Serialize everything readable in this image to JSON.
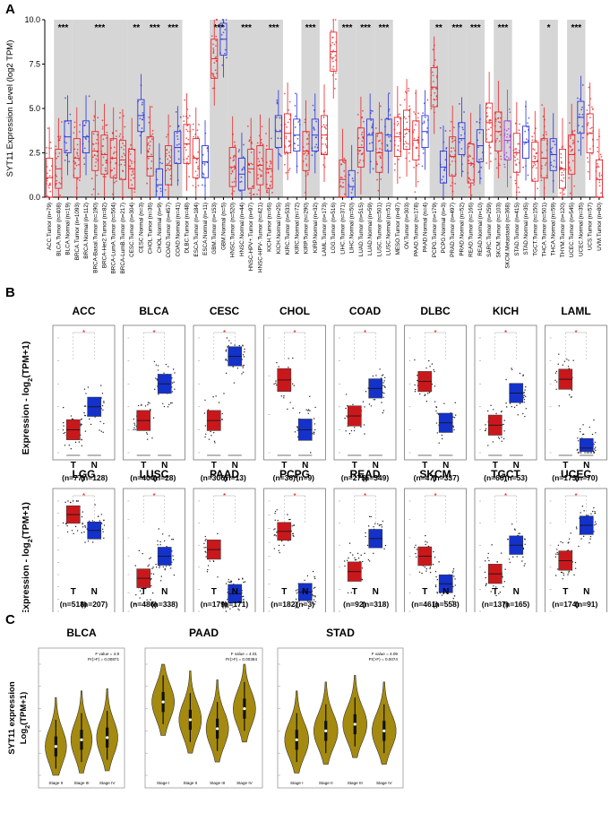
{
  "figure": {
    "panels": [
      {
        "letter": "A"
      },
      {
        "letter": "B"
      },
      {
        "letter": "C"
      }
    ]
  },
  "chart_data": [
    {
      "panel": "A",
      "type": "box",
      "ylabel": "SYT11 Expression Level (log2 TPM)",
      "ylim": [
        0,
        10
      ],
      "yticks": [
        "0.0",
        "2.5",
        "5.0",
        "7.5",
        "10.0"
      ],
      "tumor_color": "#e8262b",
      "normal_color": "#2b36d9",
      "metastasis_color": "#9b3fd6",
      "shade_color": "#d6d6d6",
      "groups": [
        {
          "label": "ACC",
          "shade": false,
          "sig": "",
          "items": [
            {
              "name": "ACC.Tumor (n=79)",
              "kind": "T",
              "median": 1.1
            }
          ]
        },
        {
          "label": "BLCA",
          "shade": true,
          "sig": "***",
          "items": [
            {
              "name": "BLCA.Tumor (n=408)",
              "kind": "T",
              "median": 1.6
            },
            {
              "name": "BLCA.Normal (n=19)",
              "kind": "N",
              "median": 3.4
            }
          ]
        },
        {
          "label": "BRCA",
          "shade": true,
          "sig": "***",
          "items": [
            {
              "name": "BRCA.Tumor (n=1093)",
              "kind": "T",
              "median": 2.2
            },
            {
              "name": "BRCA.Normal (n=112)",
              "kind": "N",
              "median": 3.4
            },
            {
              "name": "BRCA-Basal.Tumor (n=190)",
              "kind": "T",
              "median": 2.6
            },
            {
              "name": "BRCA-Her2.Tumor (n=82)",
              "kind": "T",
              "median": 2.4
            },
            {
              "name": "BRCA-LumA.Tumor (n=564)",
              "kind": "T",
              "median": 2.2
            },
            {
              "name": "BRCA-LumB.Tumor (n=217)",
              "kind": "T",
              "median": 2.1
            }
          ]
        },
        {
          "label": "CESC",
          "shade": true,
          "sig": "**",
          "items": [
            {
              "name": "CESC.Tumor (n=304)",
              "kind": "T",
              "median": 1.6
            },
            {
              "name": "CESC.Normal (n=3)",
              "kind": "N",
              "median": 4.6
            }
          ]
        },
        {
          "label": "CHOL",
          "shade": true,
          "sig": "***",
          "items": [
            {
              "name": "CHOL.Tumor (n=36)",
              "kind": "T",
              "median": 2.3
            },
            {
              "name": "CHOL.Normal (n=9)",
              "kind": "N",
              "median": 0.7
            }
          ]
        },
        {
          "label": "COAD",
          "shade": true,
          "sig": "***",
          "items": [
            {
              "name": "COAD.Tumor (n=457)",
              "kind": "T",
              "median": 1.8
            },
            {
              "name": "COAD.Normal (n=41)",
              "kind": "N",
              "median": 2.8
            }
          ]
        },
        {
          "label": "DLBC",
          "shade": false,
          "sig": "",
          "items": [
            {
              "name": "DLBC.Tumor (n=48)",
              "kind": "T",
              "median": 3.0
            }
          ]
        },
        {
          "label": "ESCA",
          "shade": false,
          "sig": "",
          "items": [
            {
              "name": "ESCA.Tumor (n=184)",
              "kind": "T",
              "median": 2.2
            },
            {
              "name": "ESCA.Normal (n=11)",
              "kind": "N",
              "median": 2.0
            }
          ]
        },
        {
          "label": "GBM",
          "shade": true,
          "sig": "***",
          "items": [
            {
              "name": "GBM.Tumor (n=153)",
              "kind": "T",
              "median": 7.8
            },
            {
              "name": "GBM.Normal (n=5)",
              "kind": "N",
              "median": 8.9
            }
          ]
        },
        {
          "label": "HNSC",
          "shade": true,
          "sig": "***",
          "items": [
            {
              "name": "HNSC.Tumor (n=520)",
              "kind": "T",
              "median": 1.7
            },
            {
              "name": "HNSC.Normal (n=44)",
              "kind": "N",
              "median": 1.3
            },
            {
              "name": "HNSC-HPV+.Tumor (n=97)",
              "kind": "T",
              "median": 1.6
            },
            {
              "name": "HNSC-HPV-.Tumor (n=421)",
              "kind": "T",
              "median": 1.8
            }
          ]
        },
        {
          "label": "KICH",
          "shade": true,
          "sig": "***",
          "items": [
            {
              "name": "KICH.Tumor (n=66)",
              "kind": "T",
              "median": 1.6
            },
            {
              "name": "KICH.Normal (n=25)",
              "kind": "N",
              "median": 3.7
            }
          ]
        },
        {
          "label": "KIRC",
          "shade": false,
          "sig": "",
          "items": [
            {
              "name": "KIRC.Tumor (n=533)",
              "kind": "T",
              "median": 3.6
            },
            {
              "name": "KIRC.Normal (n=72)",
              "kind": "N",
              "median": 3.5
            }
          ]
        },
        {
          "label": "KIRP",
          "shade": true,
          "sig": "***",
          "items": [
            {
              "name": "KIRP.Tumor (n=290)",
              "kind": "T",
              "median": 2.6
            },
            {
              "name": "KIRP.Normal (n=32)",
              "kind": "N",
              "median": 3.5
            }
          ]
        },
        {
          "label": "LAML",
          "shade": false,
          "sig": "",
          "items": [
            {
              "name": "LAML.Tumor (n=173)",
              "kind": "T",
              "median": 3.5
            }
          ]
        },
        {
          "label": "LGG",
          "shade": false,
          "sig": "",
          "items": [
            {
              "name": "LGG.Tumor (n=516)",
              "kind": "T",
              "median": 8.2
            }
          ]
        },
        {
          "label": "LIHC",
          "shade": true,
          "sig": "***",
          "items": [
            {
              "name": "LIHC.Tumor (n=371)",
              "kind": "T",
              "median": 1.0
            },
            {
              "name": "LIHC.Normal (n=50)",
              "kind": "N",
              "median": 0.6
            }
          ]
        },
        {
          "label": "LUAD",
          "shade": true,
          "sig": "***",
          "items": [
            {
              "name": "LUAD.Tumor (n=515)",
              "kind": "T",
              "median": 2.8
            },
            {
              "name": "LUAD.Normal (n=59)",
              "kind": "N",
              "median": 3.5
            }
          ]
        },
        {
          "label": "LUSC",
          "shade": true,
          "sig": "***",
          "items": [
            {
              "name": "LUSC.Tumor (n=501)",
              "kind": "T",
              "median": 2.5
            },
            {
              "name": "LUSC.Normal (n=51)",
              "kind": "N",
              "median": 3.5
            }
          ]
        },
        {
          "label": "MESO",
          "shade": false,
          "sig": "",
          "items": [
            {
              "name": "MESO.Tumor (n=87)",
              "kind": "T",
              "median": 3.4
            }
          ]
        },
        {
          "label": "OV",
          "shade": false,
          "sig": "",
          "items": [
            {
              "name": "OV.Tumor (n=303)",
              "kind": "T",
              "median": 3.8
            }
          ]
        },
        {
          "label": "PAAD",
          "shade": false,
          "sig": "",
          "items": [
            {
              "name": "PAAD.Tumor (n=178)",
              "kind": "T",
              "median": 3.2
            },
            {
              "name": "PAAD.Normal (n=4)",
              "kind": "N",
              "median": 3.7
            }
          ]
        },
        {
          "label": "PCPG",
          "shade": true,
          "sig": "**",
          "items": [
            {
              "name": "PCPG.Tumor (n=179)",
              "kind": "T",
              "median": 6.2
            },
            {
              "name": "PCPG.Normal (n=3)",
              "kind": "N",
              "median": 1.7
            }
          ]
        },
        {
          "label": "PRAD",
          "shade": true,
          "sig": "***",
          "items": [
            {
              "name": "PRAD.Tumor (n=497)",
              "kind": "T",
              "median": 2.3
            },
            {
              "name": "PRAD.Normal (n=52)",
              "kind": "N",
              "median": 3.3
            }
          ]
        },
        {
          "label": "READ",
          "shade": true,
          "sig": "***",
          "items": [
            {
              "name": "READ.Tumor (n=166)",
              "kind": "T",
              "median": 1.9
            },
            {
              "name": "READ.Normal (n=10)",
              "kind": "N",
              "median": 2.9
            }
          ]
        },
        {
          "label": "SARC",
          "shade": false,
          "sig": "",
          "items": [
            {
              "name": "SARC.Tumor (n=259)",
              "kind": "T",
              "median": 4.2
            }
          ]
        },
        {
          "label": "SKCM",
          "shade": true,
          "sig": "***",
          "items": [
            {
              "name": "SKCM.Tumor (n=103)",
              "kind": "T",
              "median": 3.7
            },
            {
              "name": "SKCM.Metastasis (n=368)",
              "kind": "M",
              "median": 3.2
            }
          ]
        },
        {
          "label": "STAD",
          "shade": false,
          "sig": "",
          "items": [
            {
              "name": "STAD.Tumor (n=415)",
              "kind": "T",
              "median": 2.5
            },
            {
              "name": "STAD.Normal (n=35)",
              "kind": "N",
              "median": 3.1
            }
          ]
        },
        {
          "label": "TGCT",
          "shade": false,
          "sig": "",
          "items": [
            {
              "name": "TGCT.Tumor (n=150)",
              "kind": "T",
              "median": 2.0
            }
          ]
        },
        {
          "label": "THCA",
          "shade": true,
          "sig": "*",
          "items": [
            {
              "name": "THCA.Tumor (n=501)",
              "kind": "T",
              "median": 2.2
            },
            {
              "name": "THCA.Normal (n=59)",
              "kind": "N",
              "median": 2.4
            }
          ]
        },
        {
          "label": "THYM",
          "shade": false,
          "sig": "",
          "items": [
            {
              "name": "THYM.Tumor (n=120)",
              "kind": "T",
              "median": 1.6
            }
          ]
        },
        {
          "label": "UCEC",
          "shade": true,
          "sig": "***",
          "items": [
            {
              "name": "UCEC.Tumor (n=545)",
              "kind": "T",
              "median": 2.4
            },
            {
              "name": "UCEC.Normal (n=35)",
              "kind": "N",
              "median": 4.5
            }
          ]
        },
        {
          "label": "UCS",
          "shade": false,
          "sig": "",
          "items": [
            {
              "name": "UCS.Tumor (n=57)",
              "kind": "T",
              "median": 3.6
            }
          ]
        },
        {
          "label": "UVM",
          "shade": false,
          "sig": "",
          "items": [
            {
              "name": "UVM.Tumor (n=80)",
              "kind": "T",
              "median": 1.0
            }
          ]
        }
      ]
    },
    {
      "panel": "B",
      "type": "box",
      "ylabel_main": "Expression - log",
      "ylabel_sub": "2",
      "ylabel_tail": "(TPM+1)",
      "tumor_color": "#c9181c",
      "normal_color": "#1431c9",
      "sig_marker": "*",
      "rows": [
        [
          {
            "title": "ACC",
            "t_label": "T",
            "n_label": "N",
            "t_n": "(n=77)",
            "n_n": "(n=128)",
            "t_median": 1.0,
            "n_median": 2.0,
            "ymax": 5
          },
          {
            "title": "BLCA",
            "t_label": "T",
            "n_label": "N",
            "t_n": "(n=404)",
            "n_n": "(n=28)",
            "t_median": 1.4,
            "n_median": 3.0,
            "ymax": 5
          },
          {
            "title": "CESC",
            "t_label": "T",
            "n_label": "N",
            "t_n": "(n=306)",
            "n_n": "(n=13)",
            "t_median": 1.4,
            "n_median": 4.2,
            "ymax": 5
          },
          {
            "title": "CHOL",
            "t_label": "T",
            "n_label": "N",
            "t_n": "(n=36)",
            "n_n": "(n=9)",
            "t_median": 1.9,
            "n_median": 0.6,
            "ymax": 3
          },
          {
            "title": "COAD",
            "t_label": "T",
            "n_label": "N",
            "t_n": "(n=275)",
            "n_n": "(n=349)",
            "t_median": 1.6,
            "n_median": 2.8,
            "ymax": 5
          },
          {
            "title": "DLBC",
            "t_label": "T",
            "n_label": "N",
            "t_n": "(n=47)",
            "n_n": "(n=337)",
            "t_median": 3.1,
            "n_median": 1.3,
            "ymax": 5
          },
          {
            "title": "KICH",
            "t_label": "T",
            "n_label": "N",
            "t_n": "(n=66)",
            "n_n": "(n=53)",
            "t_median": 1.2,
            "n_median": 2.6,
            "ymax": 5
          },
          {
            "title": "LAML",
            "t_label": "T",
            "n_label": "N",
            "t_n": "(n=173)",
            "n_n": "(n=70)",
            "t_median": 3.2,
            "n_median": 0.2,
            "ymax": 5
          }
        ],
        [
          {
            "title": "LGG",
            "t_label": "T",
            "n_label": "N",
            "t_n": "(n=518)",
            "n_n": "(n=207)",
            "t_median": 7.9,
            "n_median": 6.6,
            "ymax": 9
          },
          {
            "title": "LUSC",
            "t_label": "T",
            "n_label": "N",
            "t_n": "(n=486)",
            "n_n": "(n=338)",
            "t_median": 1.8,
            "n_median": 3.0,
            "ymax": 6
          },
          {
            "title": "PAAD",
            "t_label": "T",
            "n_label": "N",
            "t_n": "(n=179)",
            "n_n": "(n=171)",
            "t_median": 2.8,
            "n_median": 0.8,
            "ymax": 5
          },
          {
            "title": "PCPG",
            "t_label": "T",
            "n_label": "N",
            "t_n": "(n=182)",
            "n_n": "(n=3)",
            "t_median": 5.8,
            "n_median": 1.4,
            "ymax": 8
          },
          {
            "title": "READ",
            "t_label": "T",
            "n_label": "N",
            "t_n": "(n=92)",
            "n_n": "(n=318)",
            "t_median": 1.8,
            "n_median": 3.3,
            "ymax": 5
          },
          {
            "title": "SKCM",
            "t_label": "T",
            "n_label": "N",
            "t_n": "(n=461)",
            "n_n": "(n=558)",
            "t_median": 3.0,
            "n_median": 1.5,
            "ymax": 6
          },
          {
            "title": "TGCT",
            "t_label": "T",
            "n_label": "N",
            "t_n": "(n=137)",
            "n_n": "(n=165)",
            "t_median": 1.7,
            "n_median": 3.0,
            "ymax": 5
          },
          {
            "title": "UCEC",
            "t_label": "T",
            "n_label": "N",
            "t_n": "(n=174)",
            "n_n": "(n=91)",
            "t_median": 2.3,
            "n_median": 3.9,
            "ymax": 5
          }
        ]
      ]
    },
    {
      "panel": "C",
      "type": "violin",
      "ylabel_line1": "SYT11 expression",
      "ylabel_line2_main": "Log",
      "ylabel_line2_sub": "2",
      "ylabel_line2_tail": "(TPM+1)",
      "violin_color": "#a58a10",
      "plots": [
        {
          "title": "BLCA",
          "stats": [
            "F value = 4.9",
            "Pr(>F) = 0.00871"
          ],
          "stages": [
            "Stage II",
            "Stage III",
            "Stage IV"
          ],
          "medians": [
            1.3,
            1.6,
            1.7
          ],
          "ymax": 5
        },
        {
          "title": "PAAD",
          "stats": [
            "F value = 4.01",
            "Pr(>F) = 0.00384"
          ],
          "stages": [
            "Stage I",
            "Stage II",
            "Stage III",
            "Stage IV"
          ],
          "medians": [
            3.3,
            2.5,
            2.1,
            3.0
          ],
          "ymax": 5
        },
        {
          "title": "STAD",
          "stats": [
            "F value = 4.09",
            "Pr(>F) = 0.0074"
          ],
          "stages": [
            "Stage I",
            "Stage II",
            "Stage III",
            "Stage IV"
          ],
          "medians": [
            1.6,
            2.0,
            2.3,
            2.0
          ],
          "ymax": 5
        }
      ]
    }
  ]
}
